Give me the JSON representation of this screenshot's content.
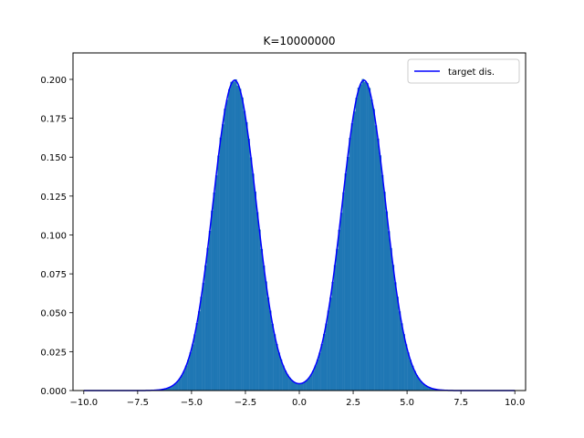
{
  "chart_data": {
    "type": "bar",
    "title": "K=10000000",
    "xlabel": "",
    "ylabel": "",
    "xlim": [
      -10.5,
      10.5
    ],
    "ylim": [
      0,
      0.217
    ],
    "xticks": [
      -10,
      -7.5,
      -5,
      -2.5,
      0,
      2.5,
      5,
      7.5,
      10
    ],
    "xtick_labels": [
      "−10.0",
      "−7.5",
      "−5.0",
      "−2.5",
      "0.0",
      "2.5",
      "5.0",
      "7.5",
      "10.0"
    ],
    "yticks": [
      0,
      0.025,
      0.05,
      0.075,
      0.1,
      0.125,
      0.15,
      0.175,
      0.2
    ],
    "ytick_labels": [
      "0.000",
      "0.025",
      "0.050",
      "0.075",
      "0.100",
      "0.125",
      "0.150",
      "0.175",
      "0.200"
    ],
    "grid": false,
    "legend_position": "top-right",
    "histogram": {
      "bin_range": [
        -7.5,
        7.5
      ],
      "bin_width": 0.1,
      "color": "#1f77b4",
      "noise": [
        0.004,
        -0.003,
        0.006,
        0.002,
        -0.005,
        0.003,
        0.007,
        -0.002,
        0.005,
        -0.004,
        0.002,
        0.006,
        -0.003,
        0.004,
        -0.006,
        0.003
      ]
    },
    "series": [
      {
        "name": "target dis.",
        "kind": "line",
        "color": "#0000ff",
        "components": [
          {
            "mean": -3,
            "std": 1,
            "weight": 0.5
          },
          {
            "mean": 3,
            "std": 1,
            "weight": 0.5
          }
        ],
        "x_range": [
          -10,
          10
        ]
      }
    ]
  }
}
